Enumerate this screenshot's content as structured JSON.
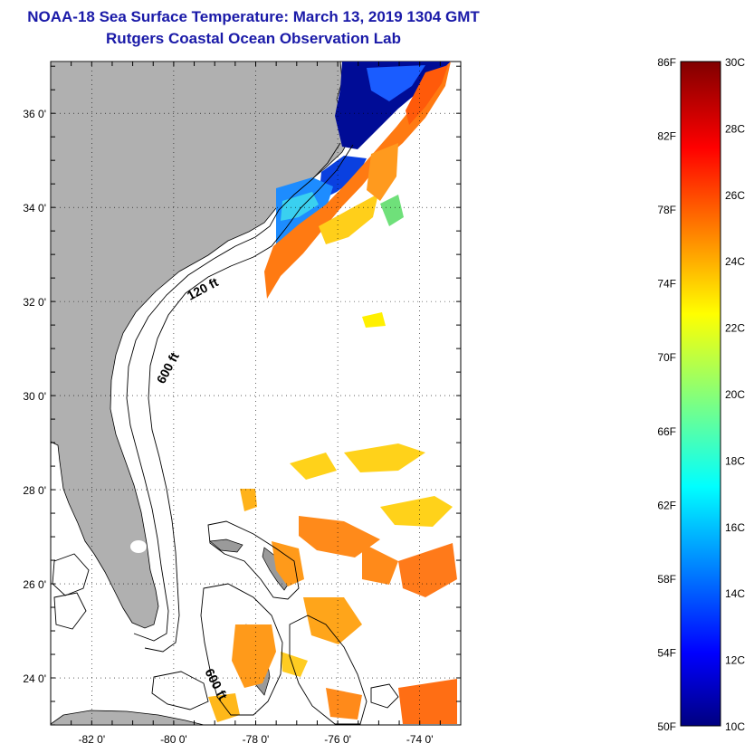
{
  "title": {
    "line1": "NOAA-18 Sea Surface Temperature:  March 13, 2019 1304 GMT",
    "line2": "Rutgers Coastal Ocean Observation Lab"
  },
  "map": {
    "lat_labels": [
      "36 0'",
      "34 0'",
      "32 0'",
      "30 0'",
      "28 0'",
      "26 0'",
      "24 0'"
    ],
    "lon_labels": [
      "-82 0'",
      "-80 0'",
      "-78 0'",
      "-76 0'",
      "-74 0'"
    ],
    "lat_values": [
      36,
      34,
      32,
      30,
      28,
      26,
      24
    ],
    "lon_values": [
      -82,
      -80,
      -78,
      -76,
      -74
    ],
    "extent": {
      "lon_min": -83,
      "lon_max": -73,
      "lat_min": 23,
      "lat_max": 37.1
    },
    "land_color": "#b0b0b0",
    "contour_labels": [
      "120 ft",
      "600 ft",
      "600 ft"
    ]
  },
  "colorbar": {
    "fahrenheit_labels": [
      "86F",
      "82F",
      "78F",
      "74F",
      "70F",
      "66F",
      "62F",
      "58F",
      "54F",
      "50F"
    ],
    "celsius_labels": [
      "30C",
      "28C",
      "26C",
      "24C",
      "22C",
      "20C",
      "18C",
      "16C",
      "14C",
      "12C",
      "10C"
    ],
    "celsius_range": [
      10,
      30
    ]
  }
}
